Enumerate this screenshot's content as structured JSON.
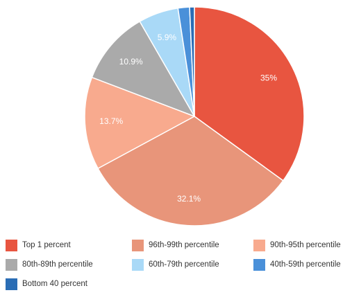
{
  "chart_data": {
    "type": "pie",
    "title": "",
    "categories": [
      "Top 1 percent",
      "96th-99th percentile",
      "90th-95th percentile",
      "80th-89th percentile",
      "60th-79th percentile",
      "40th-59th percentile",
      "Bottom 40 percent"
    ],
    "values": [
      35,
      32.1,
      13.7,
      10.9,
      5.9,
      1.7,
      0.7
    ],
    "data_labels": [
      "35%",
      "32.1%",
      "13.7%",
      "10.9%",
      "5.9%",
      "",
      ""
    ],
    "colors": [
      "#e85540",
      "#e8957a",
      "#f8aa8e",
      "#aaaaaa",
      "#a9d9f7",
      "#4a90d9",
      "#2a6db5"
    ],
    "legend_position": "bottom"
  }
}
